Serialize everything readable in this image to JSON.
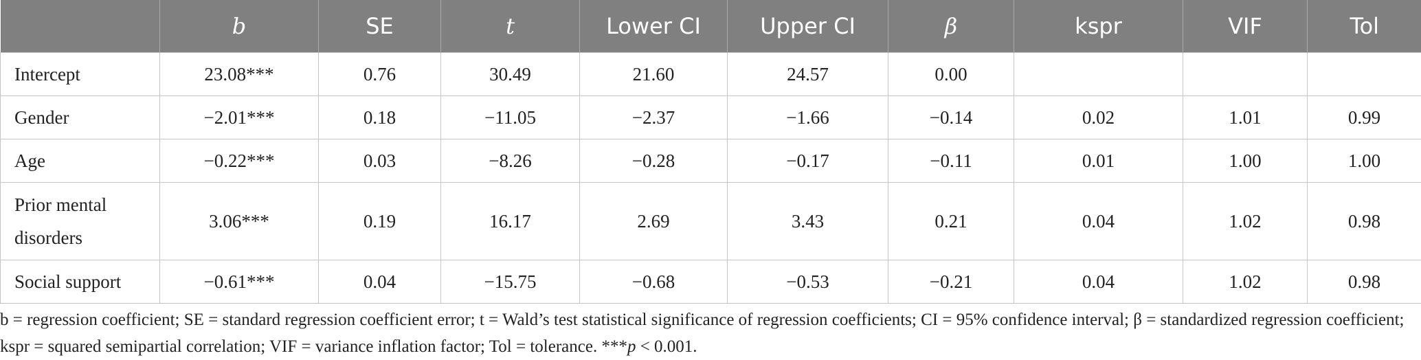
{
  "table": {
    "headers": [
      "",
      "b",
      "SE",
      "t",
      "Lower CI",
      "Upper CI",
      "β",
      "kspr",
      "VIF",
      "Tol"
    ],
    "rows": [
      [
        "Intercept",
        "23.08***",
        "0.76",
        "30.49",
        "21.60",
        "24.57",
        "0.00",
        "",
        "",
        ""
      ],
      [
        "Gender",
        "−2.01***",
        "0.18",
        "−11.05",
        "−2.37",
        "−1.66",
        "−0.14",
        "0.02",
        "1.01",
        "0.99"
      ],
      [
        "Age",
        "−0.22***",
        "0.03",
        "−8.26",
        "−0.28",
        "−0.17",
        "−0.11",
        "0.01",
        "1.00",
        "1.00"
      ],
      [
        "Prior mental disorders",
        "3.06***",
        "0.19",
        "16.17",
        "2.69",
        "3.43",
        "0.21",
        "0.04",
        "1.02",
        "0.98"
      ],
      [
        "Social support",
        "−0.61***",
        "0.04",
        "−15.75",
        "−0.68",
        "−0.53",
        "−0.21",
        "0.04",
        "1.02",
        "0.98"
      ]
    ]
  },
  "footnote": {
    "text": "b = regression coefficient; SE = standard regression coefficient error; t = Wald’s test statistical significance of regression coefficients; CI = 95% confidence interval; β = standardized regression coefficient; kspr = squared semipartial correlation; VIF = variance inflation factor; Tol = tolerance. ***",
    "p_symbol": "p",
    "p_value": " < 0.001."
  }
}
